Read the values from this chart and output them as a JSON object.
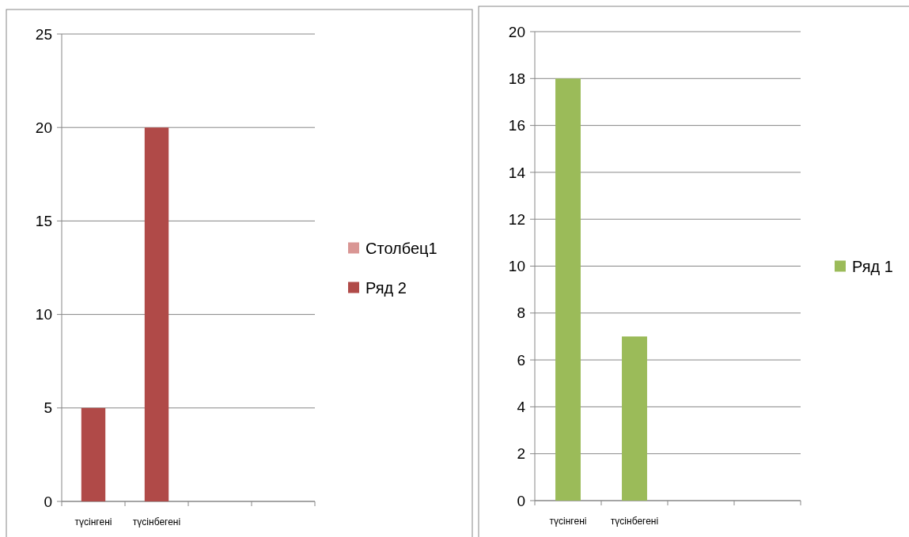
{
  "chart_data": [
    {
      "type": "bar",
      "categories": [
        "түсінгені",
        "түсінбегені",
        null,
        null
      ],
      "series": [
        {
          "name": "Столбец1",
          "color": "#d99694",
          "values": [
            null,
            null,
            null,
            null
          ]
        },
        {
          "name": "Ряд 2",
          "color": "#b04a48",
          "values": [
            5,
            20,
            null,
            null
          ]
        }
      ],
      "ylim": [
        0,
        25
      ],
      "yticks": [
        0,
        5,
        10,
        15,
        20,
        25
      ],
      "grid": "y",
      "legend": "right"
    },
    {
      "type": "bar",
      "categories": [
        "түсінгені",
        "түсінбегені",
        null,
        null
      ],
      "series": [
        {
          "name": "Ряд 1",
          "color": "#9bbb59",
          "values": [
            18,
            7,
            null,
            null
          ]
        }
      ],
      "ylim": [
        0,
        20
      ],
      "yticks": [
        0,
        2,
        4,
        6,
        8,
        10,
        12,
        14,
        16,
        18,
        20
      ],
      "grid": "y",
      "legend": "right"
    }
  ]
}
